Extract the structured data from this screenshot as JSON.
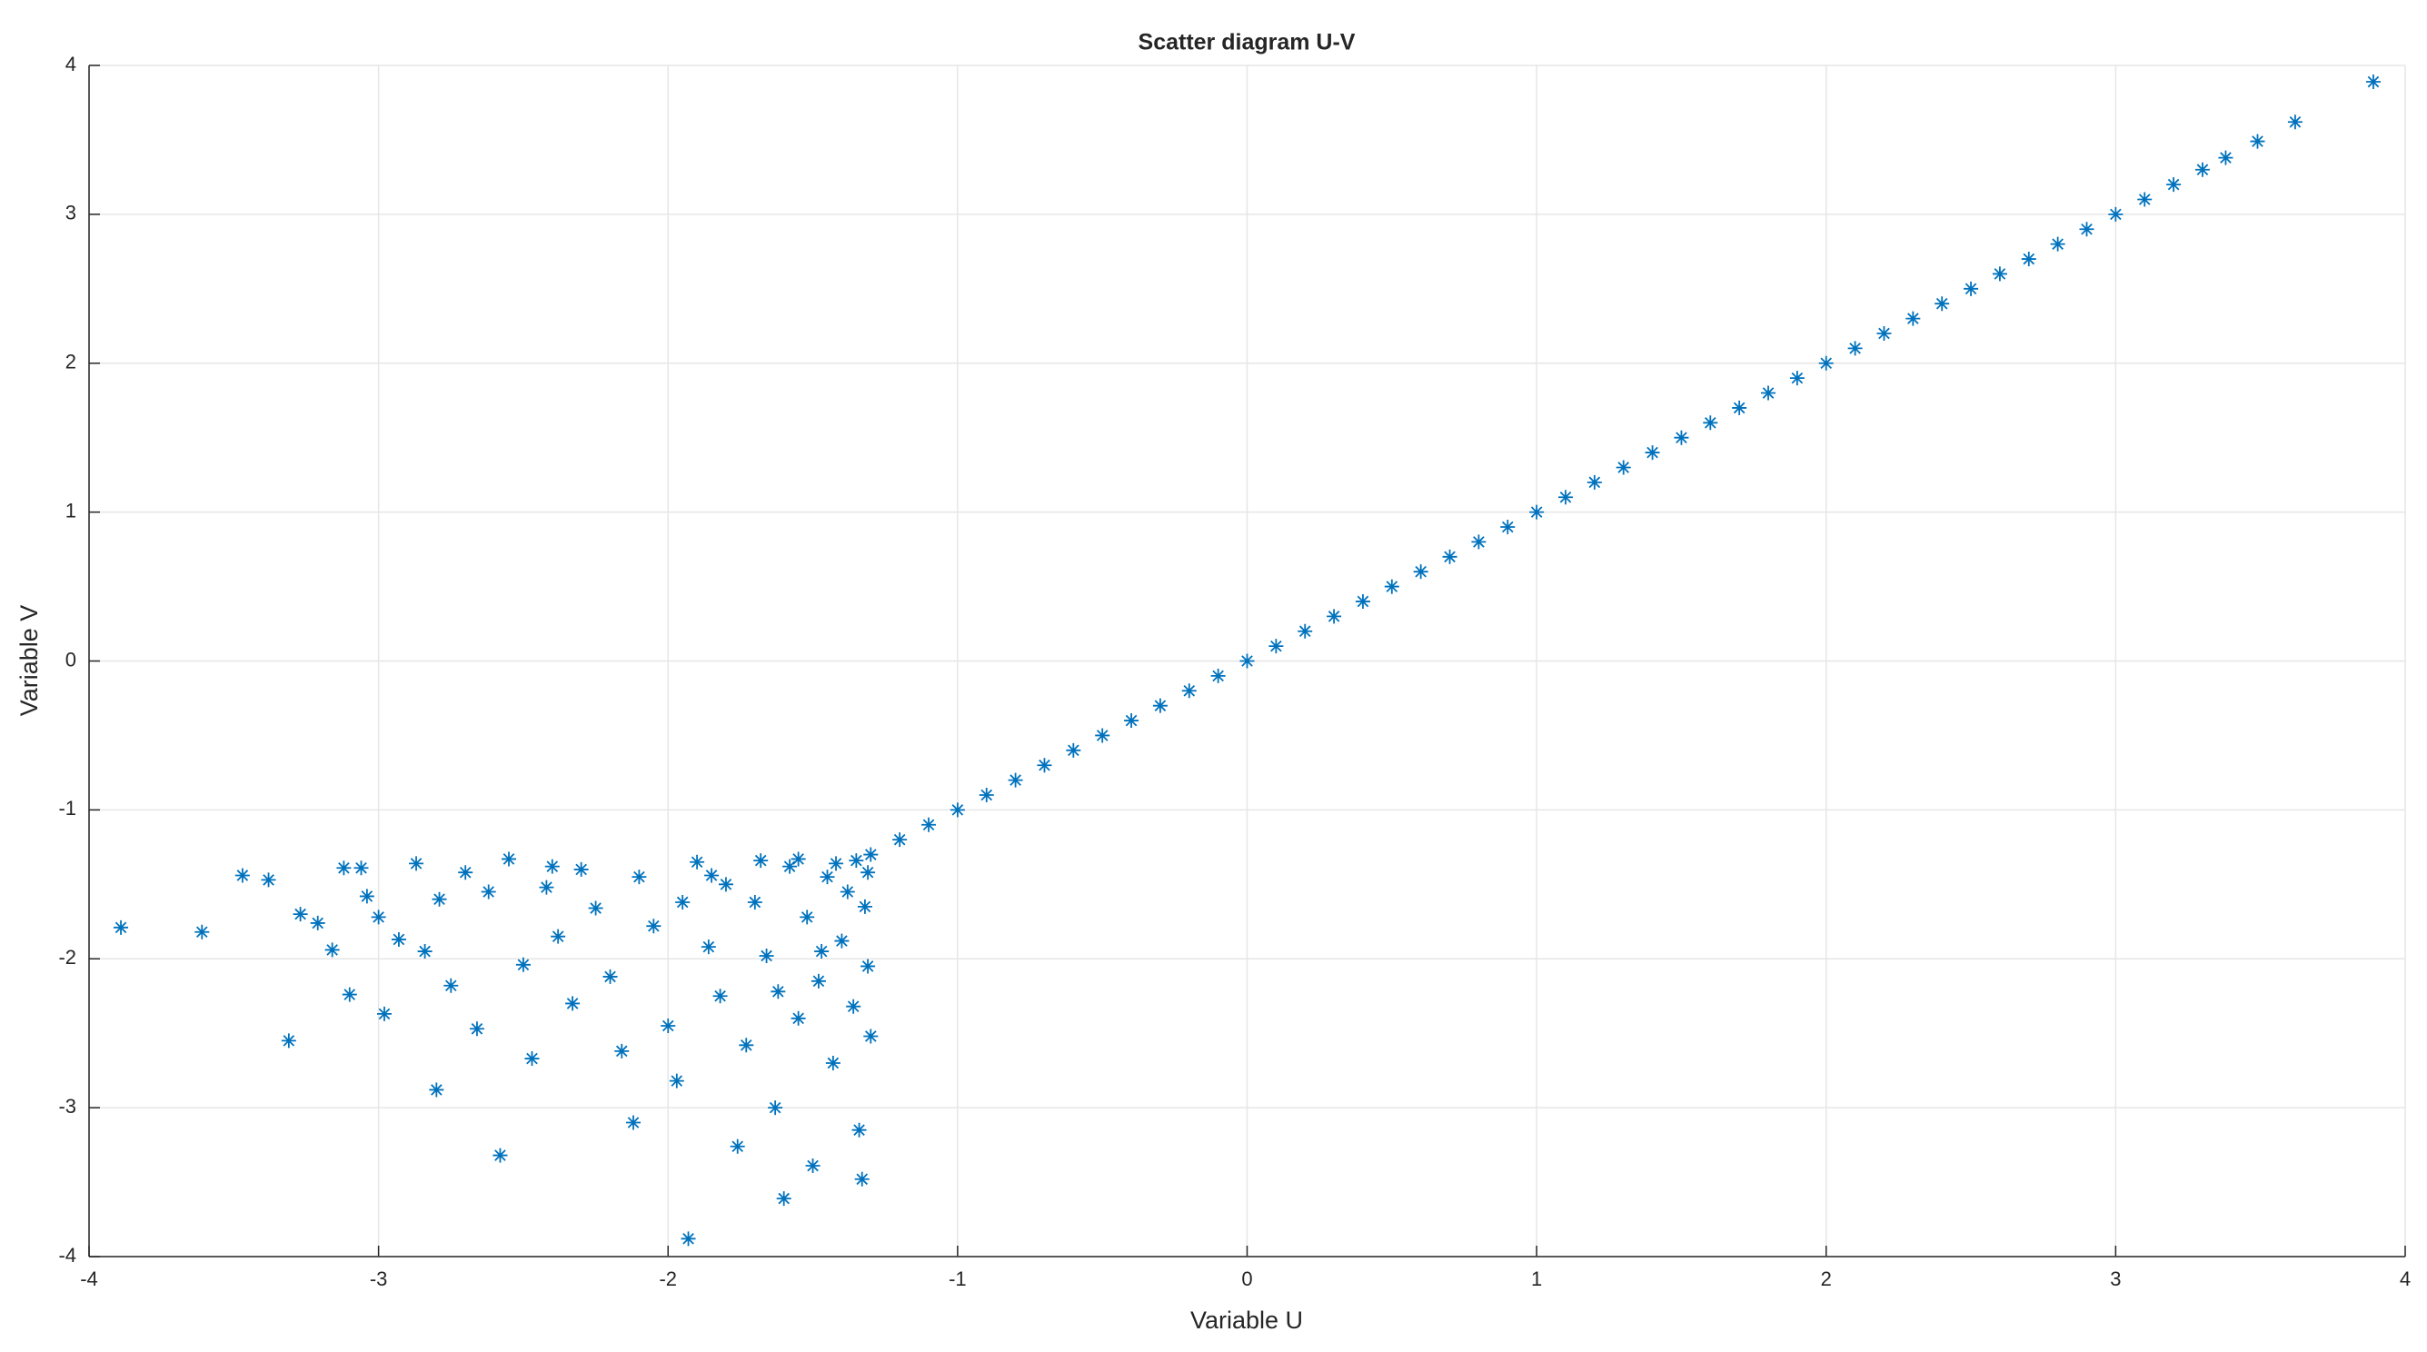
{
  "chart_data": {
    "type": "scatter",
    "title": "Scatter diagram U-V",
    "x_label": "Variable U",
    "y_label": "Variable V",
    "color": "#0072bd",
    "grid": true,
    "xlim": [
      -4,
      4
    ],
    "ylim": [
      -4,
      4
    ],
    "xticks": [
      -4,
      -3,
      -2,
      -1,
      0,
      1,
      2,
      3,
      4
    ],
    "yticks": [
      -4,
      -3,
      -2,
      -1,
      0,
      1,
      2,
      3,
      4
    ],
    "x": [
      -1.3,
      -1.2,
      -1.1,
      -1.0,
      -0.9,
      -0.8,
      -0.7,
      -0.6,
      -0.5,
      -0.4,
      -0.3,
      -0.2,
      -0.1,
      0.0,
      0.1,
      0.2,
      0.3,
      0.4,
      0.5,
      0.6,
      0.7,
      0.8,
      0.9,
      1.0,
      1.1,
      1.2,
      1.3,
      1.4,
      1.5,
      1.6,
      1.7,
      1.8,
      1.9,
      2.0,
      2.1,
      2.2,
      2.3,
      2.4,
      2.5,
      2.6,
      2.7,
      2.8,
      2.9,
      3.0,
      3.1,
      3.2,
      3.3,
      3.38,
      3.49,
      3.62,
      3.89,
      -3.89,
      -3.61,
      -3.47,
      -3.38,
      -3.31,
      -3.27,
      -3.21,
      -3.16,
      -3.12,
      -3.1,
      -3.06,
      -3.04,
      -3.0,
      -2.98,
      -2.93,
      -2.87,
      -2.84,
      -2.8,
      -2.79,
      -2.75,
      -2.7,
      -2.66,
      -2.62,
      -2.58,
      -2.55,
      -2.5,
      -2.47,
      -2.42,
      -2.38,
      -2.33,
      -2.3,
      -2.25,
      -2.2,
      -2.16,
      -2.12,
      -2.1,
      -2.05,
      -2.0,
      -1.97,
      -1.93,
      -1.9,
      -1.86,
      -1.82,
      -1.8,
      -1.76,
      -1.73,
      -1.7,
      -1.66,
      -1.63,
      -1.6,
      -1.58,
      -1.55,
      -1.52,
      -1.5,
      -1.48,
      -1.45,
      -1.43,
      -1.4,
      -1.38,
      -1.36,
      -1.34,
      -1.33,
      -1.32,
      -1.31,
      -1.3,
      -1.31,
      -1.35,
      -1.42,
      -1.55,
      -1.68,
      -1.85,
      -1.95,
      -2.4,
      -1.62,
      -1.47
    ],
    "values": [
      -1.3,
      -1.2,
      -1.1,
      -1.0,
      -0.9,
      -0.8,
      -0.7,
      -0.6,
      -0.5,
      -0.4,
      -0.3,
      -0.2,
      -0.1,
      0.0,
      0.1,
      0.2,
      0.3,
      0.4,
      0.5,
      0.6,
      0.7,
      0.8,
      0.9,
      1.0,
      1.1,
      1.2,
      1.3,
      1.4,
      1.5,
      1.6,
      1.7,
      1.8,
      1.9,
      2.0,
      2.1,
      2.2,
      2.3,
      2.4,
      2.5,
      2.6,
      2.7,
      2.8,
      2.9,
      3.0,
      3.1,
      3.2,
      3.3,
      3.38,
      3.49,
      3.62,
      3.89,
      -1.79,
      -1.82,
      -1.44,
      -1.47,
      -2.55,
      -1.7,
      -1.76,
      -1.94,
      -1.39,
      -2.24,
      -1.39,
      -1.58,
      -1.72,
      -2.37,
      -1.87,
      -1.36,
      -1.95,
      -2.88,
      -1.6,
      -2.18,
      -1.42,
      -2.47,
      -1.55,
      -3.32,
      -1.33,
      -2.04,
      -2.67,
      -1.52,
      -1.85,
      -2.3,
      -1.4,
      -1.66,
      -2.12,
      -2.62,
      -3.1,
      -1.45,
      -1.78,
      -2.45,
      -2.82,
      -3.88,
      -1.35,
      -1.92,
      -2.25,
      -1.5,
      -3.26,
      -2.58,
      -1.62,
      -1.98,
      -3.0,
      -3.61,
      -1.38,
      -2.4,
      -1.72,
      -3.39,
      -2.15,
      -1.45,
      -2.7,
      -1.88,
      -1.55,
      -2.32,
      -3.15,
      -3.48,
      -1.65,
      -2.05,
      -2.52,
      -1.42,
      -1.34,
      -1.36,
      -1.33,
      -1.34,
      -1.44,
      -1.62,
      -1.38,
      -2.22,
      -1.95
    ]
  }
}
